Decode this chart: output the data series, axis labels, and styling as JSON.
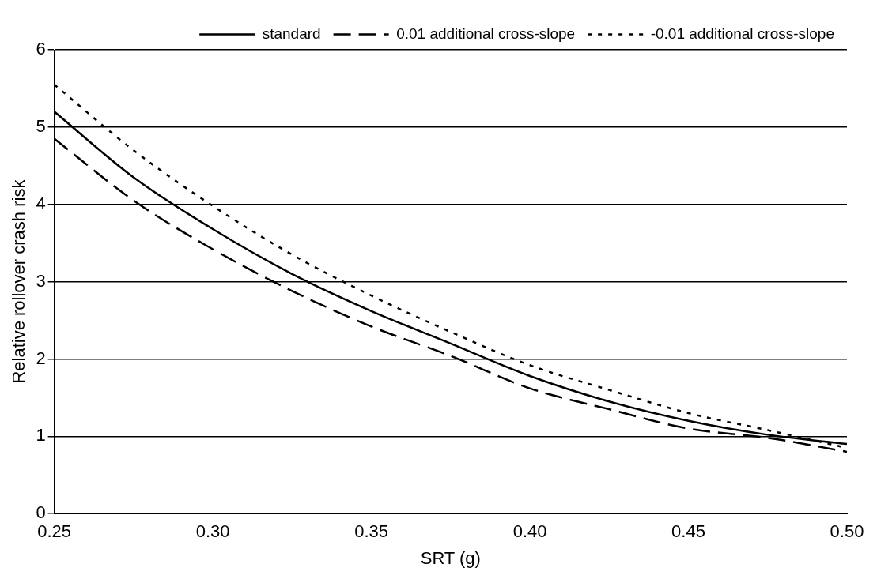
{
  "chart_data": {
    "type": "line",
    "xlabel": "SRT (g)",
    "ylabel": "Relative rollover crash risk",
    "x": [
      0.25,
      0.275,
      0.3,
      0.325,
      0.35,
      0.375,
      0.4,
      0.425,
      0.45,
      0.475,
      0.5
    ],
    "series": [
      {
        "name": "standard",
        "color": "#000000",
        "line_style": "solid",
        "values": [
          5.2,
          4.35,
          3.68,
          3.1,
          2.62,
          2.2,
          1.78,
          1.45,
          1.2,
          1.02,
          0.9
        ]
      },
      {
        "name": "0.01 additional cross-slope",
        "color": "#000000",
        "line_style": "dashed",
        "values": [
          4.85,
          4.05,
          3.42,
          2.88,
          2.42,
          2.04,
          1.62,
          1.35,
          1.1,
          0.98,
          0.8
        ]
      },
      {
        "name": "-0.01 additional cross-slope",
        "color": "#000000",
        "line_style": "dotted",
        "values": [
          5.55,
          4.7,
          3.98,
          3.35,
          2.82,
          2.35,
          1.92,
          1.6,
          1.3,
          1.08,
          0.85
        ]
      }
    ],
    "xlim": [
      0.25,
      0.5
    ],
    "xticks": [
      0.25,
      {
        "value": 0.3,
        "label": "0.30"
      },
      0.35,
      {
        "value": 0.4,
        "label": "0.40"
      },
      0.45,
      {
        "value": 0.5,
        "label": "0.50"
      }
    ],
    "ylim": [
      0,
      6
    ],
    "yticks": [
      0,
      1,
      2,
      3,
      4,
      5,
      6
    ],
    "grid": "y",
    "legend": "top right",
    "marker": "none"
  }
}
